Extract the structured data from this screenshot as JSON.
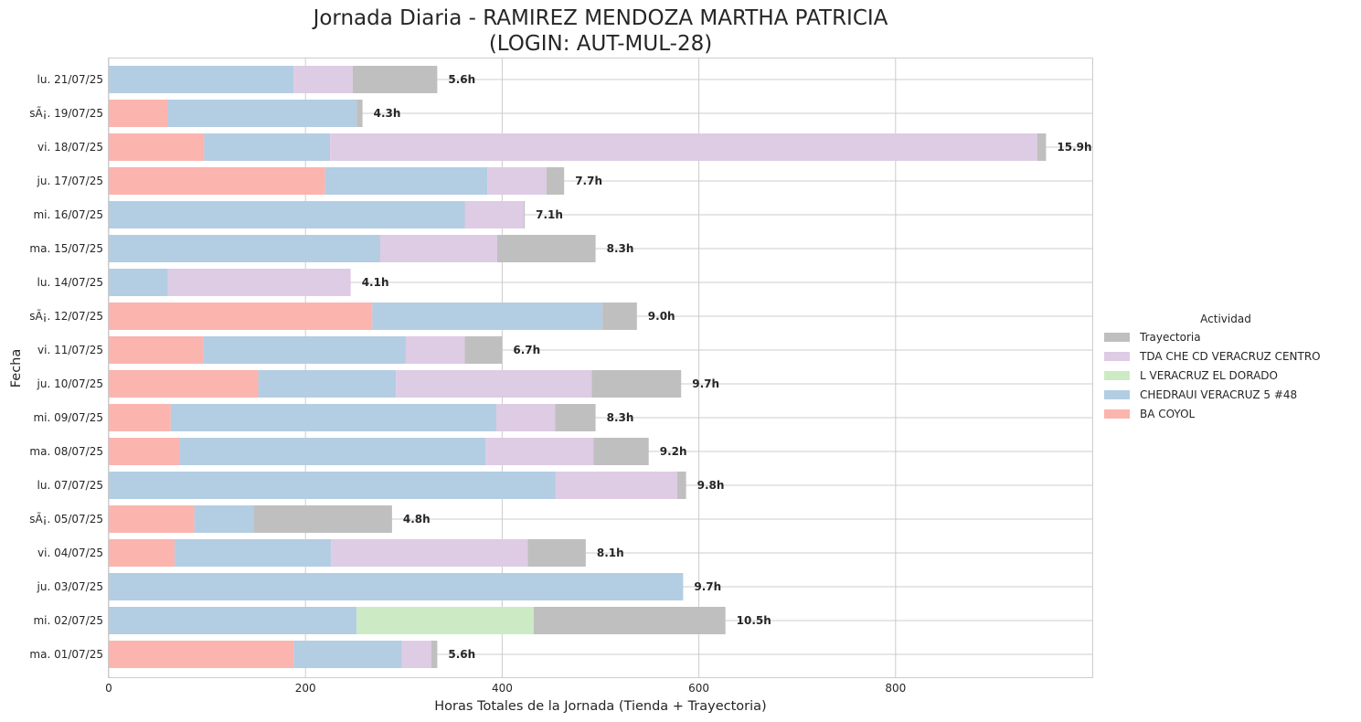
{
  "chart_data": {
    "type": "bar",
    "orientation": "horizontal",
    "stacked": true,
    "title": "Jornada Diaria - RAMIREZ MENDOZA MARTHA PATRICIA",
    "subtitle": "(LOGIN: AUT-MUL-28)",
    "xlabel": "Horas Totales de la Jornada (Tienda + Trayectoria)",
    "ylabel": "Fecha",
    "xlim": [
      0,
      1000
    ],
    "xticks": [
      0,
      200,
      400,
      600,
      800
    ],
    "grid": true,
    "legend": {
      "title": "Actividad",
      "position": "center-right"
    },
    "categories": [
      "lu. 21/07/25",
      "sÃ¡. 19/07/25",
      "vi. 18/07/25",
      "ju. 17/07/25",
      "mi. 16/07/25",
      "ma. 15/07/25",
      "lu. 14/07/25",
      "sÃ¡. 12/07/25",
      "vi. 11/07/25",
      "ju. 10/07/25",
      "mi. 09/07/25",
      "ma. 08/07/25",
      "lu. 07/07/25",
      "sÃ¡. 05/07/25",
      "vi. 04/07/25",
      "ju. 03/07/25",
      "mi. 02/07/25",
      "ma. 01/07/25"
    ],
    "totals": [
      "5.6h",
      "4.3h",
      "15.9h",
      "7.7h",
      "7.1h",
      "8.3h",
      "4.1h",
      "9.0h",
      "6.7h",
      "9.7h",
      "8.3h",
      "9.2h",
      "9.8h",
      "4.8h",
      "8.1h",
      "9.7h",
      "10.5h",
      "5.6h"
    ],
    "series": [
      {
        "name": "BA COYOL",
        "color": "#fbb4ae",
        "values": [
          0,
          60,
          97,
          220,
          0,
          0,
          0,
          268,
          96,
          152,
          63,
          72,
          0,
          87,
          67,
          0,
          0,
          188
        ]
      },
      {
        "name": "CHEDRAUI VERACRUZ 5 #48",
        "color": "#b3cde3",
        "values": [
          188,
          192,
          128,
          165,
          362,
          276,
          60,
          234,
          206,
          140,
          331,
          311,
          454,
          60,
          159,
          584,
          252,
          110
        ]
      },
      {
        "name": "L VERACRUZ EL DORADO",
        "color": "#ccebc5",
        "values": [
          0,
          0,
          0,
          0,
          0,
          0,
          0,
          0,
          0,
          0,
          0,
          0,
          0,
          0,
          0,
          0,
          180,
          0
        ]
      },
      {
        "name": "TDA CHE CD VERACRUZ CENTRO",
        "color": "#decbe4",
        "values": [
          60,
          0,
          719,
          60,
          60,
          119,
          186,
          0,
          60,
          199,
          60,
          110,
          124,
          0,
          200,
          0,
          0,
          30
        ]
      },
      {
        "name": "Trayectoria",
        "color": "#bfbfbf",
        "values": [
          86,
          6,
          9,
          18,
          1,
          100,
          0,
          35,
          38,
          91,
          41,
          56,
          9,
          141,
          59,
          0,
          195,
          6
        ]
      }
    ]
  }
}
